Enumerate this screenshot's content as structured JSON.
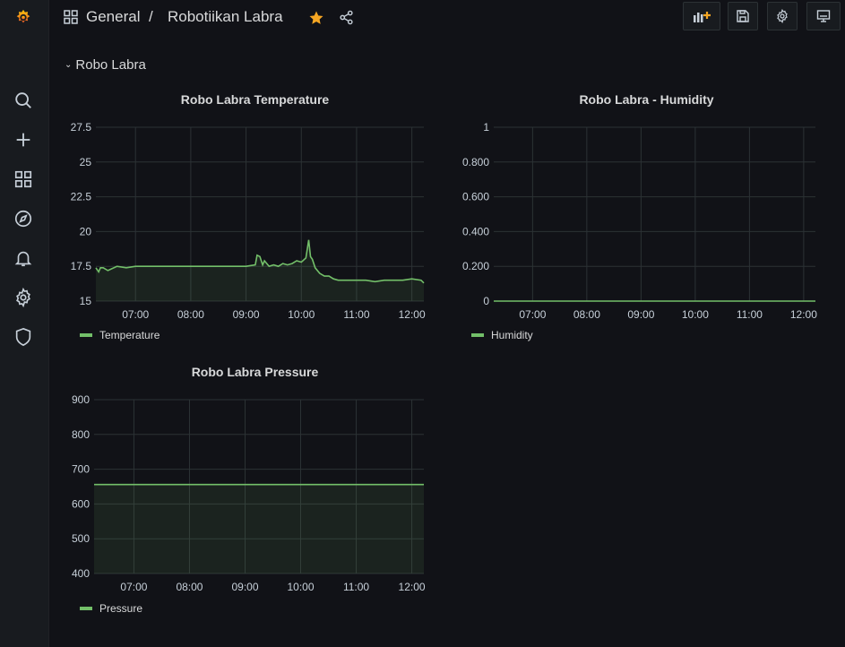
{
  "breadcrumb": {
    "folder": "General",
    "separator": "/",
    "dashboard": "Robotiikan Labra"
  },
  "colors": {
    "accent": "#f5a623",
    "series": "#73bf69",
    "grid": "#2c3235"
  },
  "row": {
    "title": "Robo Labra"
  },
  "sidebar": {
    "items": [
      {
        "icon": "search-icon"
      },
      {
        "icon": "plus-icon"
      },
      {
        "icon": "dashboards-icon"
      },
      {
        "icon": "explore-icon"
      },
      {
        "icon": "alert-bell-icon"
      },
      {
        "icon": "gear-icon"
      },
      {
        "icon": "shield-icon"
      }
    ]
  },
  "toolbar": {
    "buttons": [
      {
        "icon": "add-panel-icon"
      },
      {
        "icon": "save-icon"
      },
      {
        "icon": "settings-icon"
      },
      {
        "icon": "tv-mode-icon"
      }
    ]
  },
  "panels": {
    "temperature": {
      "title": "Robo Labra Temperature",
      "legend": "Temperature"
    },
    "humidity": {
      "title": "Robo Labra - Humidity",
      "legend": "Humidity"
    },
    "pressure": {
      "title": "Robo Labra Pressure",
      "legend": "Pressure"
    }
  },
  "chart_data": [
    {
      "type": "area",
      "title": "Robo Labra Temperature",
      "xlim": [
        "06:17",
        "12:13"
      ],
      "ylim": [
        15,
        27.5
      ],
      "y_ticks": [
        "15",
        "17.5",
        "20",
        "22.5",
        "25",
        "27.5"
      ],
      "x_ticks": [
        "07:00",
        "08:00",
        "09:00",
        "10:00",
        "11:00",
        "12:00"
      ],
      "grid": true,
      "legend_placement": "bottom-left",
      "series": [
        {
          "name": "Temperature",
          "x": [
            "06:17",
            "06:20",
            "06:22",
            "06:25",
            "06:30",
            "06:40",
            "06:50",
            "07:00",
            "07:10",
            "07:20",
            "07:30",
            "07:40",
            "07:50",
            "08:00",
            "08:10",
            "08:20",
            "08:30",
            "08:40",
            "08:50",
            "09:00",
            "09:10",
            "09:12",
            "09:15",
            "09:18",
            "09:20",
            "09:25",
            "09:30",
            "09:35",
            "09:40",
            "09:45",
            "09:50",
            "09:55",
            "10:00",
            "10:05",
            "10:08",
            "10:10",
            "10:12",
            "10:15",
            "10:20",
            "10:25",
            "10:30",
            "10:35",
            "10:40",
            "10:50",
            "11:00",
            "11:10",
            "11:20",
            "11:30",
            "11:40",
            "11:50",
            "12:00",
            "12:10",
            "12:13"
          ],
          "values": [
            17.4,
            17.1,
            17.4,
            17.4,
            17.2,
            17.5,
            17.4,
            17.5,
            17.5,
            17.5,
            17.5,
            17.5,
            17.5,
            17.5,
            17.5,
            17.5,
            17.5,
            17.5,
            17.5,
            17.5,
            17.6,
            18.3,
            18.2,
            17.6,
            17.9,
            17.5,
            17.6,
            17.5,
            17.7,
            17.6,
            17.7,
            17.9,
            17.8,
            18.1,
            19.4,
            18.2,
            18.0,
            17.4,
            17.0,
            16.8,
            16.8,
            16.6,
            16.5,
            16.5,
            16.5,
            16.5,
            16.4,
            16.5,
            16.5,
            16.5,
            16.6,
            16.5,
            16.3
          ]
        }
      ]
    },
    {
      "type": "line",
      "title": "Robo Labra - Humidity",
      "xlim": [
        "06:17",
        "12:13"
      ],
      "ylim": [
        0,
        1
      ],
      "y_ticks": [
        "0",
        "0.200",
        "0.400",
        "0.600",
        "0.800",
        "1"
      ],
      "x_ticks": [
        "07:00",
        "08:00",
        "09:00",
        "10:00",
        "11:00",
        "12:00"
      ],
      "grid": true,
      "legend_placement": "bottom-left",
      "series": [
        {
          "name": "Humidity",
          "x": [
            "06:17",
            "12:13"
          ],
          "values": [
            0,
            0
          ]
        }
      ]
    },
    {
      "type": "area",
      "title": "Robo Labra Pressure",
      "xlim": [
        "06:17",
        "12:13"
      ],
      "ylim": [
        400,
        900
      ],
      "y_ticks": [
        "400",
        "500",
        "600",
        "700",
        "800",
        "900"
      ],
      "x_ticks": [
        "07:00",
        "08:00",
        "09:00",
        "10:00",
        "11:00",
        "12:00"
      ],
      "grid": true,
      "legend_placement": "bottom-left",
      "series": [
        {
          "name": "Pressure",
          "x": [
            "06:17",
            "12:13"
          ],
          "values": [
            656,
            656
          ]
        }
      ]
    }
  ]
}
